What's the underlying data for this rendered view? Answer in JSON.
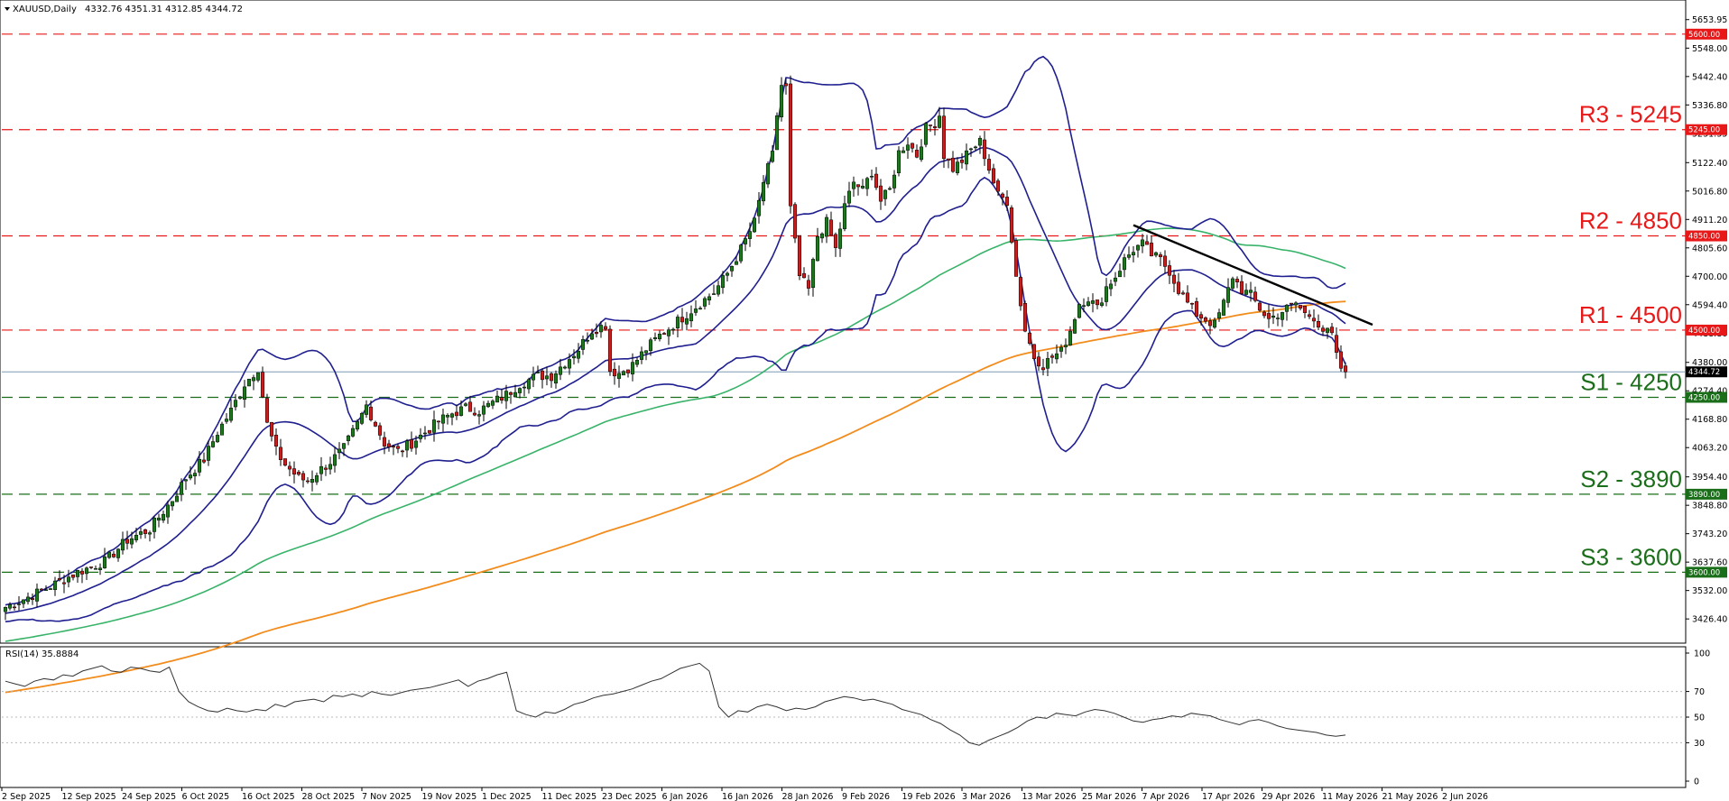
{
  "header": {
    "symbol": "XAUUSD,Daily",
    "ohlc": "4332.76 4351.31 4312.85 4344.72"
  },
  "rsi_header": "RSI(14) 35.8884",
  "chart_data": [
    {
      "type": "candlestick",
      "title": "XAUUSD,Daily",
      "ylim": [
        3380,
        5700
      ],
      "y_ticks": [
        "5653.95",
        "5548.00",
        "5442.40",
        "5336.80",
        "5231.35",
        "5122.40",
        "5016.80",
        "4911.20",
        "4805.60",
        "4700.00",
        "4594.40",
        "4488.80",
        "4380.00",
        "4274.40",
        "4168.80",
        "4063.20",
        "3954.40",
        "3848.80",
        "3743.20",
        "3637.60",
        "3532.00",
        "3426.40"
      ],
      "x_ticks": [
        "2 Sep 2025",
        "12 Sep 2025",
        "24 Sep 2025",
        "6 Oct 2025",
        "16 Oct 2025",
        "28 Oct 2025",
        "7 Nov 2025",
        "19 Nov 2025",
        "1 Dec 2025",
        "11 Dec 2025",
        "23 Dec 2025",
        "6 Jan 2026",
        "16 Jan 2026",
        "28 Jan 2026",
        "9 Feb 2026",
        "19 Feb 2026",
        "3 Mar 2026",
        "13 Mar 2026",
        "25 Mar 2026",
        "7 Apr 2026",
        "17 Apr 2026",
        "29 Apr 2026",
        "11 May 2026",
        "21 May 2026",
        "2 Jun 2026"
      ],
      "current_price": "4344.72",
      "levels": [
        {
          "label": "R3 - 5245",
          "value": 5245,
          "badge": "5245.00",
          "kind": "resistance"
        },
        {
          "label": "R2 - 4850",
          "value": 4850,
          "badge": "4850.00",
          "kind": "resistance"
        },
        {
          "label": "R1 - 4500",
          "value": 4500,
          "badge": "4500.00",
          "kind": "resistance"
        },
        {
          "label": "S1 - 4250",
          "value": 4250,
          "badge": "4250.00",
          "kind": "support"
        },
        {
          "label": "S2 - 3890",
          "value": 3890,
          "badge": "3890.00",
          "kind": "support"
        },
        {
          "label": "S3 - 3600",
          "value": 3600,
          "badge": "3600.00",
          "kind": "support"
        }
      ],
      "top_line": {
        "value": 5600,
        "badge": "5600.00"
      },
      "close_path": [
        [
          0,
          3470
        ],
        [
          8,
          3530
        ],
        [
          16,
          3600
        ],
        [
          22,
          3640
        ],
        [
          27,
          3720
        ],
        [
          32,
          3760
        ],
        [
          37,
          3870
        ],
        [
          40,
          3950
        ],
        [
          44,
          4020
        ],
        [
          47,
          4120
        ],
        [
          50,
          4200
        ],
        [
          53,
          4300
        ],
        [
          56,
          4360
        ],
        [
          58,
          4150
        ],
        [
          60,
          4050
        ],
        [
          62,
          4000
        ],
        [
          65,
          3950
        ],
        [
          67,
          3940
        ],
        [
          69,
          3970
        ],
        [
          72,
          4010
        ],
        [
          75,
          4060
        ],
        [
          78,
          4150
        ],
        [
          80,
          4220
        ],
        [
          82,
          4150
        ],
        [
          84,
          4080
        ],
        [
          87,
          4050
        ],
        [
          90,
          4080
        ],
        [
          93,
          4120
        ],
        [
          96,
          4160
        ],
        [
          99,
          4190
        ],
        [
          102,
          4210
        ],
        [
          105,
          4200
        ],
        [
          108,
          4230
        ],
        [
          111,
          4260
        ],
        [
          114,
          4300
        ],
        [
          118,
          4330
        ],
        [
          121,
          4330
        ],
        [
          124,
          4380
        ],
        [
          127,
          4430
        ],
        [
          130,
          4500
        ],
        [
          133,
          4520
        ],
        [
          134,
          4350
        ],
        [
          136,
          4340
        ],
        [
          139,
          4370
        ],
        [
          142,
          4430
        ],
        [
          145,
          4480
        ],
        [
          148,
          4520
        ],
        [
          151,
          4560
        ],
        [
          154,
          4600
        ],
        [
          157,
          4640
        ],
        [
          160,
          4710
        ],
        [
          163,
          4800
        ],
        [
          166,
          4900
        ],
        [
          168,
          5050
        ],
        [
          170,
          5150
        ],
        [
          171,
          5300
        ],
        [
          172,
          5410
        ],
        [
          173,
          5400
        ],
        [
          174,
          4950
        ],
        [
          176,
          4700
        ],
        [
          178,
          4650
        ],
        [
          180,
          4850
        ],
        [
          182,
          4900
        ],
        [
          184,
          4800
        ],
        [
          186,
          4960
        ],
        [
          188,
          5050
        ],
        [
          190,
          5020
        ],
        [
          192,
          5090
        ],
        [
          194,
          4980
        ],
        [
          196,
          5020
        ],
        [
          198,
          5160
        ],
        [
          200,
          5200
        ],
        [
          202,
          5150
        ],
        [
          204,
          5250
        ],
        [
          206,
          5270
        ],
        [
          207,
          5300
        ],
        [
          208,
          5150
        ],
        [
          210,
          5100
        ],
        [
          212,
          5130
        ],
        [
          214,
          5170
        ],
        [
          216,
          5200
        ],
        [
          218,
          5100
        ],
        [
          220,
          5000
        ],
        [
          222,
          4980
        ],
        [
          224,
          4700
        ],
        [
          226,
          4500
        ],
        [
          228,
          4400
        ],
        [
          230,
          4370
        ],
        [
          232,
          4400
        ],
        [
          234,
          4420
        ],
        [
          236,
          4500
        ],
        [
          238,
          4600
        ],
        [
          240,
          4620
        ],
        [
          242,
          4580
        ],
        [
          244,
          4660
        ],
        [
          246,
          4700
        ],
        [
          248,
          4760
        ],
        [
          250,
          4800
        ],
        [
          252,
          4820
        ],
        [
          254,
          4780
        ],
        [
          256,
          4760
        ],
        [
          258,
          4720
        ],
        [
          260,
          4650
        ],
        [
          262,
          4600
        ],
        [
          264,
          4560
        ],
        [
          266,
          4540
        ],
        [
          268,
          4520
        ],
        [
          270,
          4600
        ],
        [
          272,
          4700
        ],
        [
          274,
          4650
        ],
        [
          276,
          4630
        ],
        [
          278,
          4580
        ],
        [
          280,
          4540
        ],
        [
          282,
          4560
        ],
        [
          284,
          4580
        ],
        [
          286,
          4600
        ],
        [
          288,
          4560
        ],
        [
          290,
          4550
        ],
        [
          292,
          4500
        ],
        [
          294,
          4480
        ],
        [
          295,
          4400
        ],
        [
          296,
          4360
        ],
        [
          297,
          4344
        ]
      ],
      "series": [
        {
          "name": "Bollinger upper",
          "color": "#1f1f8f"
        },
        {
          "name": "Bollinger middle",
          "color": "#1f1f8f"
        },
        {
          "name": "Bollinger lower",
          "color": "#1f1f8f"
        },
        {
          "name": "MA 100",
          "color": "#39b36a"
        },
        {
          "name": "MA 200",
          "color": "#f28c1d"
        }
      ],
      "trendline": [
        [
          250,
          4890
        ],
        [
          303,
          4520
        ]
      ],
      "colors": {
        "bull": "#1a7a1a",
        "bear": "#d11a1a",
        "resistance": "#e81818",
        "support": "#1a6e1a",
        "price_line": "#7e9ab5"
      }
    },
    {
      "type": "line",
      "title": "RSI(14) 35.8884",
      "ylim": [
        0,
        100
      ],
      "y_ticks": [
        "100",
        "70",
        "50",
        "30",
        "0"
      ],
      "values": [
        78,
        76,
        74,
        78,
        80,
        79,
        83,
        82,
        86,
        88,
        90,
        86,
        85,
        89,
        88,
        86,
        85,
        89,
        70,
        62,
        58,
        55,
        54,
        57,
        55,
        54,
        56,
        55,
        60,
        58,
        62,
        63,
        64,
        62,
        67,
        66,
        68,
        66,
        70,
        68,
        67,
        69,
        71,
        72,
        73,
        75,
        77,
        79,
        74,
        78,
        80,
        83,
        85,
        55,
        52,
        50,
        54,
        53,
        56,
        60,
        62,
        65,
        67,
        68,
        70,
        72,
        75,
        78,
        80,
        84,
        88,
        90,
        92,
        86,
        58,
        50,
        55,
        54,
        58,
        60,
        58,
        55,
        57,
        56,
        58,
        62,
        64,
        66,
        65,
        63,
        64,
        62,
        60,
        56,
        54,
        52,
        48,
        45,
        40,
        36,
        30,
        28,
        32,
        35,
        38,
        42,
        47,
        50,
        49,
        53,
        52,
        51,
        54,
        56,
        55,
        53,
        50,
        47,
        46,
        48,
        49,
        51,
        50,
        53,
        52,
        51,
        48,
        46,
        44,
        47,
        48,
        46,
        43,
        41,
        40,
        39,
        38,
        36,
        35,
        36
      ]
    }
  ]
}
